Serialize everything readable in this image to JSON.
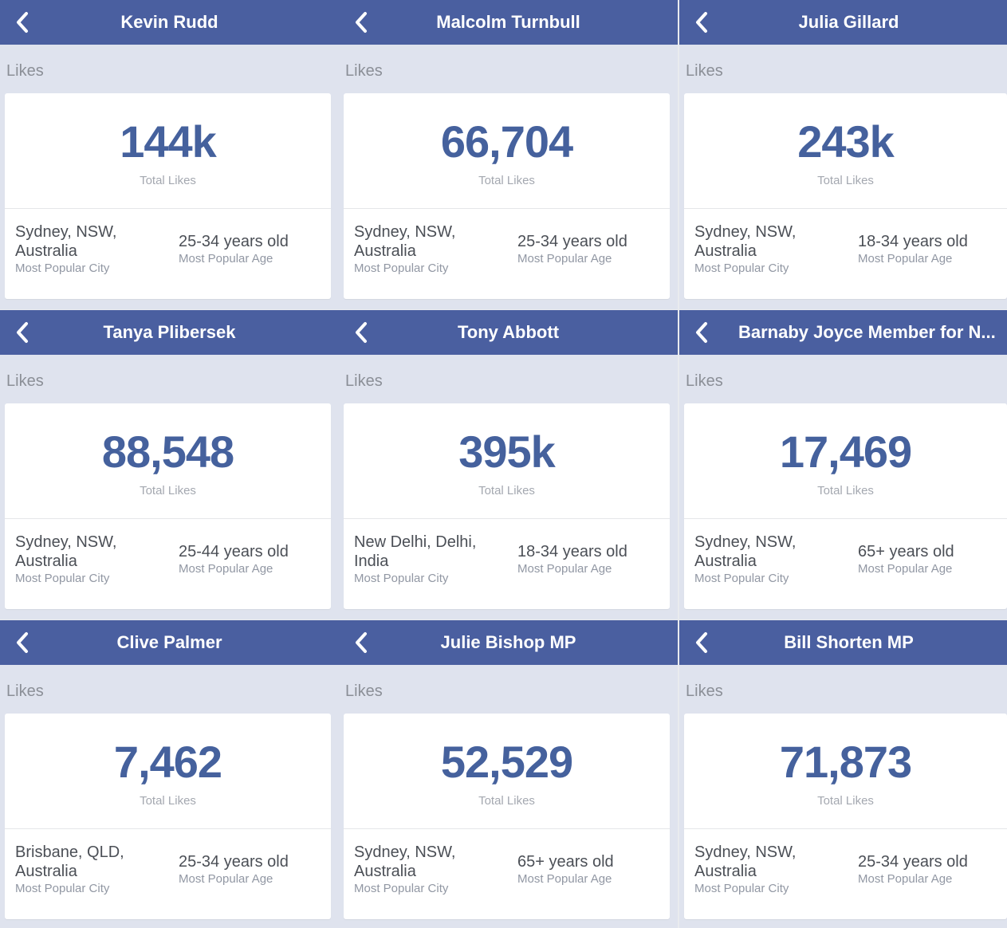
{
  "common": {
    "likes_heading": "Likes",
    "total_likes_label": "Total Likes",
    "city_label": "Most Popular City",
    "age_label": "Most Popular Age"
  },
  "icons": {
    "back": "chevron-left-icon"
  },
  "colors": {
    "header": "#4a5fa0",
    "accent": "#45619d",
    "background": "#dfe3ee"
  },
  "panels": [
    {
      "name": "Kevin Rudd",
      "total": "144k",
      "city": "Sydney, NSW, Australia",
      "age": "25-34 years old"
    },
    {
      "name": "Malcolm Turnbull",
      "total": "66,704",
      "city": "Sydney, NSW, Australia",
      "age": "25-34 years old"
    },
    {
      "name": "Julia Gillard",
      "total": "243k",
      "city": "Sydney, NSW, Australia",
      "age": "18-34 years old"
    },
    {
      "name": "Tanya Plibersek",
      "total": "88,548",
      "city": "Sydney, NSW, Australia",
      "age": "25-44 years old"
    },
    {
      "name": "Tony Abbott",
      "total": "395k",
      "city": "New Delhi, Delhi, India",
      "age": "18-34 years old"
    },
    {
      "name": "Barnaby Joyce Member for N...",
      "total": "17,469",
      "city": "Sydney, NSW, Australia",
      "age": "65+ years old"
    },
    {
      "name": "Clive Palmer",
      "total": "7,462",
      "city": "Brisbane, QLD, Australia",
      "age": "25-34 years old"
    },
    {
      "name": "Julie Bishop MP",
      "total": "52,529",
      "city": "Sydney, NSW, Australia",
      "age": "65+ years old"
    },
    {
      "name": "Bill Shorten MP",
      "total": "71,873",
      "city": "Sydney, NSW, Australia",
      "age": "25-34 years old"
    }
  ]
}
